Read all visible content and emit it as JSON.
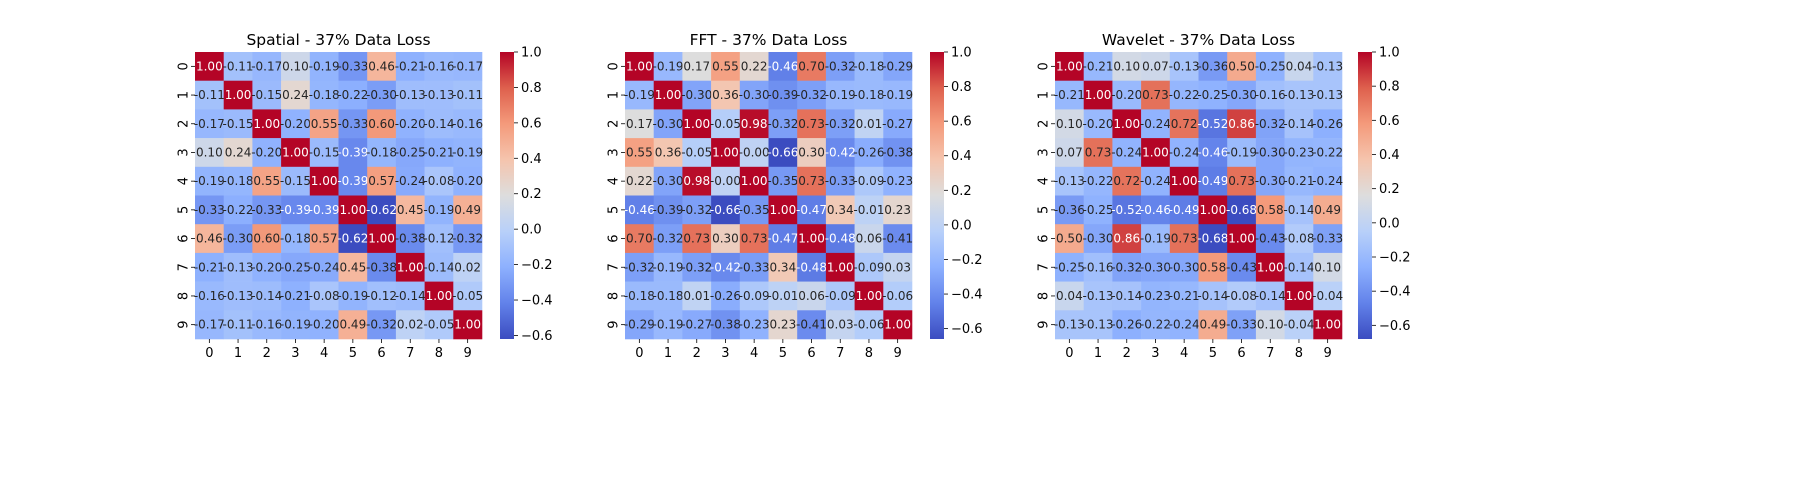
{
  "chart_data": [
    {
      "type": "heatmap",
      "title": "Spatial - 37% Data Loss",
      "x_ticks": [
        "0",
        "1",
        "2",
        "3",
        "4",
        "5",
        "6",
        "7",
        "8",
        "9"
      ],
      "y_ticks": [
        "0",
        "1",
        "2",
        "3",
        "4",
        "5",
        "6",
        "7",
        "8",
        "9"
      ],
      "colormap": "coolwarm",
      "vmin": -0.62,
      "vmax": 1.0,
      "colorbar_ticks": [
        "1.0",
        "0.8",
        "0.6",
        "0.4",
        "0.2",
        "0.0",
        "−0.2",
        "−0.4",
        "−0.6"
      ],
      "values": [
        [
          1.0,
          -0.11,
          -0.17,
          0.1,
          -0.19,
          -0.33,
          0.46,
          -0.21,
          -0.16,
          -0.17
        ],
        [
          -0.11,
          1.0,
          -0.15,
          0.24,
          -0.18,
          -0.22,
          -0.3,
          -0.13,
          -0.13,
          -0.11
        ],
        [
          -0.17,
          -0.15,
          1.0,
          -0.2,
          0.55,
          -0.33,
          0.6,
          -0.2,
          -0.14,
          -0.16
        ],
        [
          0.1,
          0.24,
          -0.2,
          1.0,
          -0.15,
          -0.39,
          -0.18,
          -0.25,
          -0.21,
          -0.19
        ],
        [
          -0.19,
          -0.18,
          0.55,
          -0.15,
          1.0,
          -0.39,
          0.57,
          -0.24,
          -0.08,
          -0.2
        ],
        [
          -0.33,
          -0.22,
          -0.33,
          -0.39,
          -0.39,
          1.0,
          -0.62,
          0.45,
          -0.19,
          0.49
        ],
        [
          0.46,
          -0.3,
          0.6,
          -0.18,
          0.57,
          -0.62,
          1.0,
          -0.38,
          -0.12,
          -0.32
        ],
        [
          -0.21,
          -0.13,
          -0.2,
          -0.25,
          -0.24,
          0.45,
          -0.38,
          1.0,
          -0.14,
          0.02
        ],
        [
          -0.16,
          -0.13,
          -0.14,
          -0.21,
          -0.08,
          -0.19,
          -0.12,
          -0.14,
          1.0,
          -0.05
        ],
        [
          -0.17,
          -0.11,
          -0.16,
          -0.19,
          -0.2,
          0.49,
          -0.32,
          0.02,
          -0.05,
          1.0
        ]
      ],
      "cell_labels": [
        [
          "1.00",
          "-0.11",
          "-0.17",
          "0.10",
          "-0.19",
          "-0.33",
          "0.46",
          "-0.21",
          "-0.16",
          "-0.17"
        ],
        [
          "-0.11",
          "1.00",
          "-0.15",
          "0.24",
          "-0.18",
          "-0.22",
          "-0.30",
          "-0.13",
          "-0.13",
          "-0.11"
        ],
        [
          "-0.17",
          "-0.15",
          "1.00",
          "-0.20",
          "0.55",
          "-0.33",
          "0.60",
          "-0.20",
          "-0.14",
          "-0.16"
        ],
        [
          "0.10",
          "0.24",
          "-0.20",
          "1.00",
          "-0.15",
          "-0.39",
          "-0.18",
          "-0.25",
          "-0.21",
          "-0.19"
        ],
        [
          "-0.19",
          "-0.18",
          "0.55",
          "-0.15",
          "1.00",
          "-0.39",
          "0.57",
          "-0.24",
          "-0.08",
          "-0.20"
        ],
        [
          "-0.33",
          "-0.22",
          "-0.33",
          "-0.39",
          "-0.39",
          "1.00",
          "-0.62",
          "0.45",
          "-0.19",
          "0.49"
        ],
        [
          "0.46",
          "-0.30",
          "0.60",
          "-0.18",
          "0.57",
          "-0.62",
          "1.00",
          "-0.38",
          "-0.12",
          "-0.32"
        ],
        [
          "-0.21",
          "-0.13",
          "-0.20",
          "-0.25",
          "-0.24",
          "0.45",
          "-0.38",
          "1.00",
          "-0.14",
          "0.02"
        ],
        [
          "-0.16",
          "-0.13",
          "-0.14",
          "-0.21",
          "-0.08",
          "-0.19",
          "-0.12",
          "-0.14",
          "1.00",
          "-0.05"
        ],
        [
          "-0.17",
          "-0.11",
          "-0.16",
          "-0.19",
          "-0.20",
          "0.49",
          "-0.32",
          "0.02",
          "-0.05",
          "1.00"
        ]
      ]
    },
    {
      "type": "heatmap",
      "title": "FFT - 37% Data Loss",
      "x_ticks": [
        "0",
        "1",
        "2",
        "3",
        "4",
        "5",
        "6",
        "7",
        "8",
        "9"
      ],
      "y_ticks": [
        "0",
        "1",
        "2",
        "3",
        "4",
        "5",
        "6",
        "7",
        "8",
        "9"
      ],
      "colormap": "coolwarm",
      "vmin": -0.66,
      "vmax": 1.0,
      "colorbar_ticks": [
        "1.0",
        "0.8",
        "0.6",
        "0.4",
        "0.2",
        "0.0",
        "−0.2",
        "−0.4",
        "−0.6"
      ],
      "values": [
        [
          1.0,
          -0.19,
          0.17,
          0.55,
          0.22,
          -0.46,
          0.7,
          -0.32,
          -0.18,
          -0.29
        ],
        [
          -0.19,
          1.0,
          -0.3,
          0.36,
          -0.3,
          -0.39,
          -0.32,
          -0.19,
          -0.18,
          -0.19
        ],
        [
          0.17,
          -0.3,
          1.0,
          -0.05,
          0.98,
          -0.32,
          0.73,
          -0.32,
          0.01,
          -0.27
        ],
        [
          0.55,
          0.36,
          -0.05,
          1.0,
          -0.0,
          -0.66,
          0.3,
          -0.42,
          -0.26,
          -0.38
        ],
        [
          0.22,
          -0.3,
          0.98,
          -0.0,
          1.0,
          -0.35,
          0.73,
          -0.33,
          -0.09,
          -0.23
        ],
        [
          -0.46,
          -0.39,
          -0.32,
          -0.66,
          -0.35,
          1.0,
          -0.47,
          0.34,
          -0.01,
          0.23
        ],
        [
          0.7,
          -0.32,
          0.73,
          0.3,
          0.73,
          -0.47,
          1.0,
          -0.48,
          0.06,
          -0.41
        ],
        [
          -0.32,
          -0.19,
          -0.32,
          -0.42,
          -0.33,
          0.34,
          -0.48,
          1.0,
          -0.09,
          0.03
        ],
        [
          -0.18,
          -0.18,
          0.01,
          -0.26,
          -0.09,
          -0.01,
          0.06,
          -0.09,
          1.0,
          -0.06
        ],
        [
          -0.29,
          -0.19,
          -0.27,
          -0.38,
          -0.23,
          0.23,
          -0.41,
          0.03,
          -0.06,
          1.0
        ]
      ],
      "cell_labels": [
        [
          "1.00",
          "-0.19",
          "0.17",
          "0.55",
          "0.22",
          "-0.46",
          "0.70",
          "-0.32",
          "-0.18",
          "-0.29"
        ],
        [
          "-0.19",
          "1.00",
          "-0.30",
          "0.36",
          "-0.30",
          "-0.39",
          "-0.32",
          "-0.19",
          "-0.18",
          "-0.19"
        ],
        [
          "0.17",
          "-0.30",
          "1.00",
          "-0.05",
          "0.98",
          "-0.32",
          "0.73",
          "-0.32",
          "0.01",
          "-0.27"
        ],
        [
          "0.55",
          "0.36",
          "-0.05",
          "1.00",
          "-0.00",
          "-0.66",
          "0.30",
          "-0.42",
          "-0.26",
          "-0.38"
        ],
        [
          "0.22",
          "-0.30",
          "0.98",
          "-0.00",
          "1.00",
          "-0.35",
          "0.73",
          "-0.33",
          "-0.09",
          "-0.23"
        ],
        [
          "-0.46",
          "-0.39",
          "-0.32",
          "-0.66",
          "-0.35",
          "1.00",
          "-0.47",
          "0.34",
          "-0.01",
          "0.23"
        ],
        [
          "0.70",
          "-0.32",
          "0.73",
          "0.30",
          "0.73",
          "-0.47",
          "1.00",
          "-0.48",
          "0.06",
          "-0.41"
        ],
        [
          "-0.32",
          "-0.19",
          "-0.32",
          "-0.42",
          "-0.33",
          "0.34",
          "-0.48",
          "1.00",
          "-0.09",
          "0.03"
        ],
        [
          "-0.18",
          "-0.18",
          "0.01",
          "-0.26",
          "-0.09",
          "-0.01",
          "0.06",
          "-0.09",
          "1.00",
          "-0.06"
        ],
        [
          "-0.29",
          "-0.19",
          "-0.27",
          "-0.38",
          "-0.23",
          "0.23",
          "-0.41",
          "0.03",
          "-0.06",
          "1.00"
        ]
      ]
    },
    {
      "type": "heatmap",
      "title": "Wavelet - 37% Data Loss",
      "x_ticks": [
        "0",
        "1",
        "2",
        "3",
        "4",
        "5",
        "6",
        "7",
        "8",
        "9"
      ],
      "y_ticks": [
        "0",
        "1",
        "2",
        "3",
        "4",
        "5",
        "6",
        "7",
        "8",
        "9"
      ],
      "colormap": "coolwarm",
      "vmin": -0.68,
      "vmax": 1.0,
      "colorbar_ticks": [
        "1.0",
        "0.8",
        "0.6",
        "0.4",
        "0.2",
        "0.0",
        "−0.2",
        "−0.4",
        "−0.6"
      ],
      "values": [
        [
          1.0,
          -0.21,
          0.1,
          0.07,
          -0.13,
          -0.36,
          0.5,
          -0.25,
          0.04,
          -0.13
        ],
        [
          -0.21,
          1.0,
          -0.2,
          0.73,
          -0.22,
          -0.25,
          -0.3,
          -0.16,
          -0.13,
          -0.13
        ],
        [
          0.1,
          -0.2,
          1.0,
          -0.24,
          0.72,
          -0.52,
          0.86,
          -0.32,
          -0.14,
          -0.26
        ],
        [
          0.07,
          0.73,
          -0.24,
          1.0,
          -0.24,
          -0.46,
          -0.19,
          -0.3,
          -0.23,
          -0.22
        ],
        [
          -0.13,
          -0.22,
          0.72,
          -0.24,
          1.0,
          -0.49,
          0.73,
          -0.3,
          -0.21,
          -0.24
        ],
        [
          -0.36,
          -0.25,
          -0.52,
          -0.46,
          -0.49,
          1.0,
          -0.68,
          0.58,
          -0.14,
          0.49
        ],
        [
          0.5,
          -0.3,
          0.86,
          -0.19,
          0.73,
          -0.68,
          1.0,
          -0.43,
          -0.08,
          -0.33
        ],
        [
          -0.25,
          -0.16,
          -0.32,
          -0.3,
          -0.3,
          0.58,
          -0.43,
          1.0,
          -0.14,
          0.1
        ],
        [
          0.04,
          -0.13,
          -0.14,
          -0.23,
          -0.21,
          -0.14,
          -0.08,
          -0.14,
          1.0,
          -0.04
        ],
        [
          -0.13,
          -0.13,
          -0.26,
          -0.22,
          -0.24,
          0.49,
          -0.33,
          0.1,
          -0.04,
          1.0
        ]
      ],
      "cell_labels": [
        [
          "1.00",
          "-0.21",
          "0.10",
          "0.07",
          "-0.13",
          "-0.36",
          "0.50",
          "-0.25",
          "0.04",
          "-0.13"
        ],
        [
          "-0.21",
          "1.00",
          "-0.20",
          "0.73",
          "-0.22",
          "-0.25",
          "-0.30",
          "-0.16",
          "-0.13",
          "-0.13"
        ],
        [
          "0.10",
          "-0.20",
          "1.00",
          "-0.24",
          "0.72",
          "-0.52",
          "0.86",
          "-0.32",
          "-0.14",
          "-0.26"
        ],
        [
          "0.07",
          "0.73",
          "-0.24",
          "1.00",
          "-0.24",
          "-0.46",
          "-0.19",
          "-0.30",
          "-0.23",
          "-0.22"
        ],
        [
          "-0.13",
          "-0.22",
          "0.72",
          "-0.24",
          "1.00",
          "-0.49",
          "0.73",
          "-0.30",
          "-0.21",
          "-0.24"
        ],
        [
          "-0.36",
          "-0.25",
          "-0.52",
          "-0.46",
          "-0.49",
          "1.00",
          "-0.68",
          "0.58",
          "-0.14",
          "0.49"
        ],
        [
          "0.50",
          "-0.30",
          "0.86",
          "-0.19",
          "0.73",
          "-0.68",
          "1.00",
          "-0.43",
          "-0.08",
          "-0.33"
        ],
        [
          "-0.25",
          "-0.16",
          "-0.32",
          "-0.30",
          "-0.30",
          "0.58",
          "-0.43",
          "1.00",
          "-0.14",
          "0.10"
        ],
        [
          "0.04",
          "-0.13",
          "-0.14",
          "-0.23",
          "-0.21",
          "-0.14",
          "-0.08",
          "-0.14",
          "1.00",
          "-0.04"
        ],
        [
          "-0.13",
          "-0.13",
          "-0.26",
          "-0.22",
          "-0.24",
          "0.49",
          "-0.33",
          "0.10",
          "-0.04",
          "1.00"
        ]
      ]
    }
  ]
}
